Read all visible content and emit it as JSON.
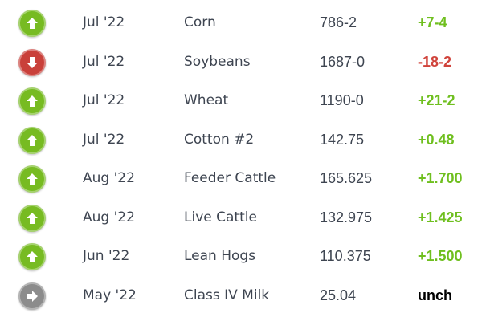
{
  "colors": {
    "up": "#77bb22",
    "down": "#c9403a",
    "unch": "#8c8c8c",
    "change_up": "#6fbf1f",
    "change_down": "#d0433b",
    "change_unch": "#000000"
  },
  "rows": [
    {
      "direction": "up",
      "icon": "arrow-up-icon",
      "month": "Jul '22",
      "name": "Corn",
      "price": "786-2",
      "change": "+7-4"
    },
    {
      "direction": "down",
      "icon": "arrow-down-icon",
      "month": "Jul '22",
      "name": "Soybeans",
      "price": "1687-0",
      "change": "-18-2"
    },
    {
      "direction": "up",
      "icon": "arrow-up-icon",
      "month": "Jul '22",
      "name": "Wheat",
      "price": "1190-0",
      "change": "+21-2"
    },
    {
      "direction": "up",
      "icon": "arrow-up-icon",
      "month": "Jul '22",
      "name": "Cotton #2",
      "price": "142.75",
      "change": "+0.48"
    },
    {
      "direction": "up",
      "icon": "arrow-up-icon",
      "month": "Aug '22",
      "name": "Feeder Cattle",
      "price": "165.625",
      "change": "+1.700"
    },
    {
      "direction": "up",
      "icon": "arrow-up-icon",
      "month": "Aug '22",
      "name": "Live Cattle",
      "price": "132.975",
      "change": "+1.425"
    },
    {
      "direction": "up",
      "icon": "arrow-up-icon",
      "month": "Jun '22",
      "name": "Lean Hogs",
      "price": "110.375",
      "change": "+1.500"
    },
    {
      "direction": "unch",
      "icon": "arrow-right-icon",
      "month": "May '22",
      "name": "Class IV Milk",
      "price": "25.04",
      "change": "unch"
    }
  ]
}
